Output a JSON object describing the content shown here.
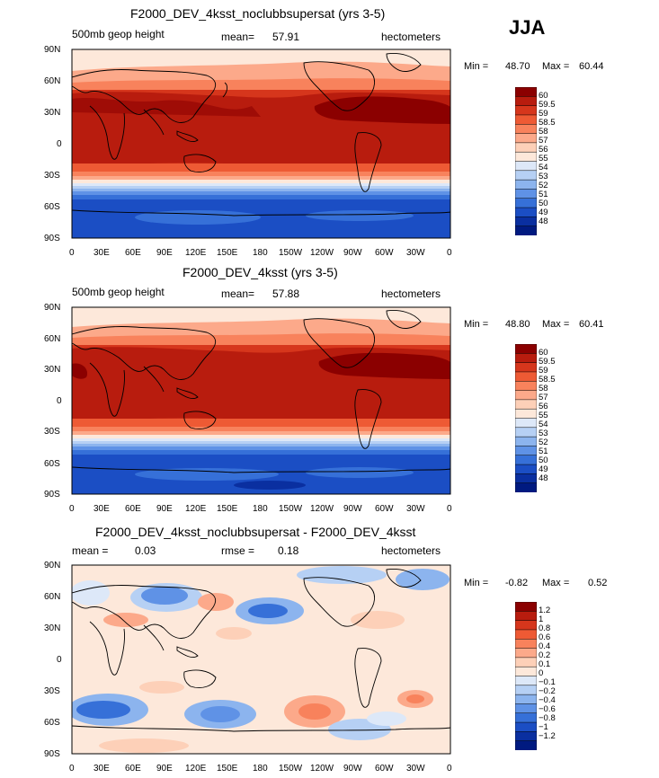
{
  "season": "JJA",
  "chart_data": [
    {
      "type": "heatmap",
      "title": "F2000_DEV_4ksst_noclubbsupersat (yrs 3-5)",
      "left_header": "500mb geop height",
      "mean_label": "mean=",
      "mean_value": "57.91",
      "units": "hectometers",
      "min_label": "Min =",
      "min_value": "48.70",
      "max_label": "Max =",
      "max_value": "60.44",
      "x_ticks": [
        "0",
        "30E",
        "60E",
        "90E",
        "120E",
        "150E",
        "180",
        "150W",
        "120W",
        "90W",
        "60W",
        "30W",
        "0"
      ],
      "y_ticks": [
        "90N",
        "60N",
        "30N",
        "0",
        "30S",
        "60S",
        "90S"
      ],
      "colorbar_levels": [
        "60",
        "59.5",
        "59",
        "58.5",
        "58",
        "57",
        "56",
        "55",
        "54",
        "53",
        "52",
        "51",
        "50",
        "49",
        "48"
      ],
      "colors": [
        "#8b0000",
        "#b81c0e",
        "#d6361c",
        "#ee5a34",
        "#f8825c",
        "#fca98a",
        "#fdd0b8",
        "#fde8da",
        "#dde8f8",
        "#b6d0f4",
        "#8cb4ee",
        "#5f92e6",
        "#3670d8",
        "#1b4ec4",
        "#0a2fa0",
        "#001a80"
      ]
    },
    {
      "type": "heatmap",
      "title": "F2000_DEV_4ksst (yrs 3-5)",
      "left_header": "500mb geop height",
      "mean_label": "mean=",
      "mean_value": "57.88",
      "units": "hectometers",
      "min_label": "Min =",
      "min_value": "48.80",
      "max_label": "Max =",
      "max_value": "60.41",
      "x_ticks": [
        "0",
        "30E",
        "60E",
        "90E",
        "120E",
        "150E",
        "180",
        "150W",
        "120W",
        "90W",
        "60W",
        "30W",
        "0"
      ],
      "y_ticks": [
        "90N",
        "60N",
        "30N",
        "0",
        "30S",
        "60S",
        "90S"
      ],
      "colorbar_levels": [
        "60",
        "59.5",
        "59",
        "58.5",
        "58",
        "57",
        "56",
        "55",
        "54",
        "53",
        "52",
        "51",
        "50",
        "49",
        "48"
      ],
      "colors": [
        "#8b0000",
        "#b81c0e",
        "#d6361c",
        "#ee5a34",
        "#f8825c",
        "#fca98a",
        "#fdd0b8",
        "#fde8da",
        "#dde8f8",
        "#b6d0f4",
        "#8cb4ee",
        "#5f92e6",
        "#3670d8",
        "#1b4ec4",
        "#0a2fa0",
        "#001a80"
      ]
    },
    {
      "type": "heatmap",
      "title": "F2000_DEV_4ksst_noclubbsupersat - F2000_DEV_4ksst",
      "mean_label": "mean =",
      "mean_value": "0.03",
      "rmse_label": "rmse =",
      "rmse_value": "0.18",
      "units": "hectometers",
      "min_label": "Min =",
      "min_value": "-0.82",
      "max_label": "Max =",
      "max_value": "0.52",
      "x_ticks": [
        "0",
        "30E",
        "60E",
        "90E",
        "120E",
        "150E",
        "180",
        "150W",
        "120W",
        "90W",
        "60W",
        "30W",
        "0"
      ],
      "y_ticks": [
        "90N",
        "60N",
        "30N",
        "0",
        "30S",
        "60S",
        "90S"
      ],
      "colorbar_levels": [
        "1.2",
        "1",
        "0.8",
        "0.6",
        "0.4",
        "0.2",
        "0.1",
        "0",
        "−0.1",
        "−0.2",
        "−0.4",
        "−0.6",
        "−0.8",
        "−1",
        "−1.2"
      ],
      "colors": [
        "#8b0000",
        "#b81c0e",
        "#d6361c",
        "#ee5a34",
        "#f8825c",
        "#fca98a",
        "#fdd0b8",
        "#fde8da",
        "#dde8f8",
        "#b6d0f4",
        "#8cb4ee",
        "#5f92e6",
        "#3670d8",
        "#1b4ec4",
        "#0a2fa0",
        "#001a80"
      ]
    }
  ]
}
